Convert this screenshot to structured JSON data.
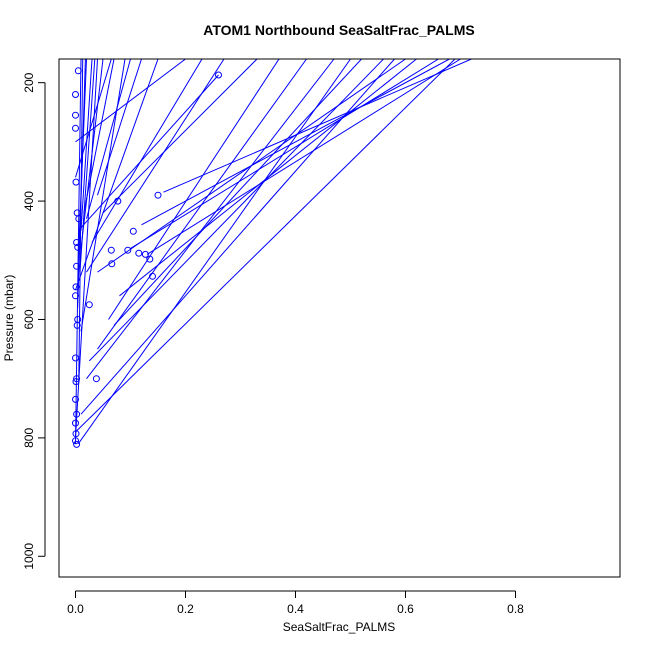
{
  "chart_data": {
    "type": "line",
    "title": "ATOM1 Northbound SeaSaltFrac_PALMS",
    "xlabel": "SeaSaltFrac_PALMS",
    "ylabel": "Pressure (mbar)",
    "xlim": [
      -0.03,
      0.99
    ],
    "ylim_reversed": [
      160,
      1035
    ],
    "x_ticks": [
      0.0,
      0.2,
      0.4,
      0.6,
      0.8
    ],
    "x_tick_labels": [
      "0.0",
      "0.2",
      "0.4",
      "0.6",
      "0.8"
    ],
    "y_ticks": [
      200,
      400,
      600,
      800,
      1000
    ],
    "y_tick_labels": [
      "200",
      "400",
      "600",
      "800",
      "1000"
    ],
    "y_axis_reversed": true,
    "series_color": "#0000ff",
    "points": [
      {
        "x": 0.005,
        "y": 180
      },
      {
        "x": 0.26,
        "y": 187
      },
      {
        "x": 0.0,
        "y": 220
      },
      {
        "x": 0.0,
        "y": 255
      },
      {
        "x": 0.0,
        "y": 277
      },
      {
        "x": 0.001,
        "y": 368
      },
      {
        "x": 0.15,
        "y": 390
      },
      {
        "x": 0.077,
        "y": 400
      },
      {
        "x": 0.003,
        "y": 420
      },
      {
        "x": 0.006,
        "y": 430
      },
      {
        "x": 0.105,
        "y": 451
      },
      {
        "x": 0.002,
        "y": 470
      },
      {
        "x": 0.004,
        "y": 478
      },
      {
        "x": 0.065,
        "y": 483
      },
      {
        "x": 0.095,
        "y": 483
      },
      {
        "x": 0.115,
        "y": 488
      },
      {
        "x": 0.127,
        "y": 490
      },
      {
        "x": 0.135,
        "y": 498
      },
      {
        "x": 0.066,
        "y": 506
      },
      {
        "x": 0.002,
        "y": 510
      },
      {
        "x": 0.14,
        "y": 527
      },
      {
        "x": 0.001,
        "y": 545
      },
      {
        "x": 0.0,
        "y": 560
      },
      {
        "x": 0.025,
        "y": 575
      },
      {
        "x": 0.004,
        "y": 600
      },
      {
        "x": 0.003,
        "y": 610
      },
      {
        "x": 0.0,
        "y": 665
      },
      {
        "x": 0.038,
        "y": 700
      },
      {
        "x": 0.002,
        "y": 700
      },
      {
        "x": 0.001,
        "y": 705
      },
      {
        "x": 0.0,
        "y": 735
      },
      {
        "x": 0.002,
        "y": 760
      },
      {
        "x": 0.0,
        "y": 775
      },
      {
        "x": 0.001,
        "y": 793
      },
      {
        "x": 0.0,
        "y": 805
      },
      {
        "x": 0.002,
        "y": 811
      }
    ],
    "segments": [
      [
        0.12,
        160,
        0.04,
        390
      ],
      [
        0.07,
        160,
        0.015,
        420
      ],
      [
        0.03,
        160,
        0.01,
        450
      ],
      [
        0.02,
        160,
        0.005,
        500
      ],
      [
        0.018,
        160,
        0.004,
        580
      ],
      [
        0.013,
        160,
        0.006,
        700
      ],
      [
        0.035,
        160,
        0.008,
        520
      ],
      [
        0.05,
        160,
        0.01,
        480
      ],
      [
        0.1,
        160,
        0.02,
        430
      ],
      [
        0.23,
        160,
        0.03,
        470
      ],
      [
        0.27,
        160,
        0.02,
        520
      ],
      [
        0.7,
        160,
        0.13,
        490
      ],
      [
        0.62,
        160,
        0.08,
        560
      ],
      [
        0.72,
        160,
        0.16,
        385
      ],
      [
        0.52,
        160,
        0.07,
        610
      ],
      [
        0.47,
        160,
        0.02,
        700
      ],
      [
        0.66,
        160,
        0.1,
        480
      ],
      [
        0.56,
        160,
        0.025,
        670
      ],
      [
        0.42,
        160,
        0.04,
        650
      ],
      [
        0.58,
        160,
        0.01,
        760
      ],
      [
        0.69,
        160,
        0.0,
        790
      ],
      [
        0.2,
        160,
        0.0,
        300
      ],
      [
        0.26,
        187,
        0.005,
        450
      ],
      [
        0.33,
        160,
        0.05,
        420
      ],
      [
        0.15,
        160,
        0.0,
        550
      ],
      [
        0.09,
        160,
        0.01,
        620
      ],
      [
        0.5,
        160,
        0.005,
        810
      ],
      [
        0.37,
        160,
        0.06,
        600
      ],
      [
        0.6,
        160,
        0.04,
        520
      ],
      [
        0.68,
        160,
        0.12,
        440
      ],
      [
        0.065,
        160,
        0.0,
        360
      ],
      [
        0.04,
        160,
        0.0,
        800
      ],
      [
        0.01,
        160,
        0.0,
        810
      ]
    ]
  }
}
